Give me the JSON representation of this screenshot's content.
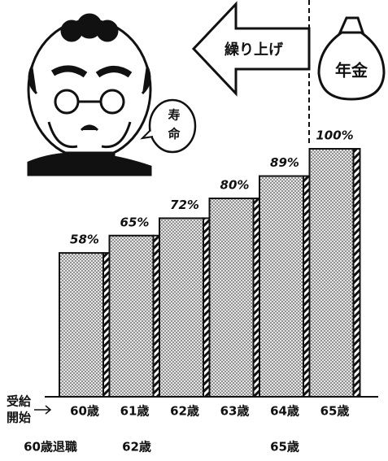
{
  "chart_data": {
    "type": "bar",
    "categories": [
      "60歳",
      "61歳",
      "62歳",
      "63歳",
      "64歳",
      "65歳"
    ],
    "values": [
      58,
      65,
      72,
      80,
      89,
      100
    ],
    "value_labels": [
      "58%",
      "65%",
      "72%",
      "80%",
      "89%",
      "100%"
    ],
    "color": "#555555",
    "start_label": [
      "受給",
      "開始"
    ],
    "footnotes": [
      "60歳退職",
      "62歳",
      "65歳"
    ],
    "arrow_label": "繰り上げ",
    "bag_label": "年金",
    "bubble_label": [
      "寿",
      "命"
    ]
  }
}
